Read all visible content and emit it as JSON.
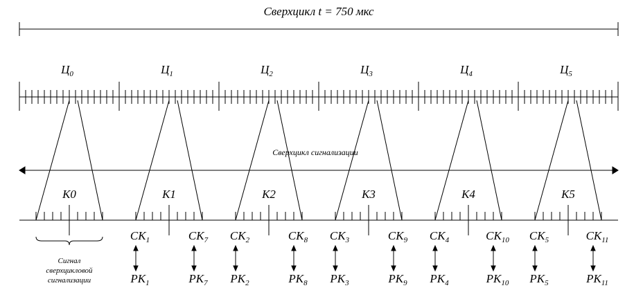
{
  "title": "Сверхцикл t = 750 мкс",
  "cycles": [
    {
      "base": "Ц",
      "sub": "0"
    },
    {
      "base": "Ц",
      "sub": "1"
    },
    {
      "base": "Ц",
      "sub": "2"
    },
    {
      "base": "Ц",
      "sub": "3"
    },
    {
      "base": "Ц",
      "sub": "4"
    },
    {
      "base": "Ц",
      "sub": "5"
    }
  ],
  "signal_superframe": "Сверхцикл сигнализации",
  "frames": [
    "К0",
    "К1",
    "К2",
    "К3",
    "К4",
    "К5"
  ],
  "channels": [
    {
      "sk_left": {
        "base": "СК",
        "sub": "1"
      },
      "sk_right": {
        "base": "СК",
        "sub": "7"
      },
      "rk_left": {
        "base": "РК",
        "sub": "1"
      },
      "rk_right": {
        "base": "РК",
        "sub": "7"
      }
    },
    {
      "sk_left": {
        "base": "СК",
        "sub": "2"
      },
      "sk_right": {
        "base": "СК",
        "sub": "8"
      },
      "rk_left": {
        "base": "РК",
        "sub": "2"
      },
      "rk_right": {
        "base": "РК",
        "sub": "8"
      }
    },
    {
      "sk_left": {
        "base": "СК",
        "sub": "3"
      },
      "sk_right": {
        "base": "СК",
        "sub": "9"
      },
      "rk_left": {
        "base": "РК",
        "sub": "3"
      },
      "rk_right": {
        "base": "РК",
        "sub": "9"
      }
    },
    {
      "sk_left": {
        "base": "СК",
        "sub": "4"
      },
      "sk_right": {
        "base": "СК",
        "sub": "10"
      },
      "rk_left": {
        "base": "РК",
        "sub": "4"
      },
      "rk_right": {
        "base": "РК",
        "sub": "10"
      }
    },
    {
      "sk_left": {
        "base": "СК",
        "sub": "5"
      },
      "sk_right": {
        "base": "СК",
        "sub": "11"
      },
      "rk_left": {
        "base": "РК",
        "sub": "5"
      },
      "rk_right": {
        "base": "РК",
        "sub": "11"
      }
    }
  ],
  "brace_note": [
    "Сигнал",
    "сверхцикловой",
    "сигнализации"
  ]
}
